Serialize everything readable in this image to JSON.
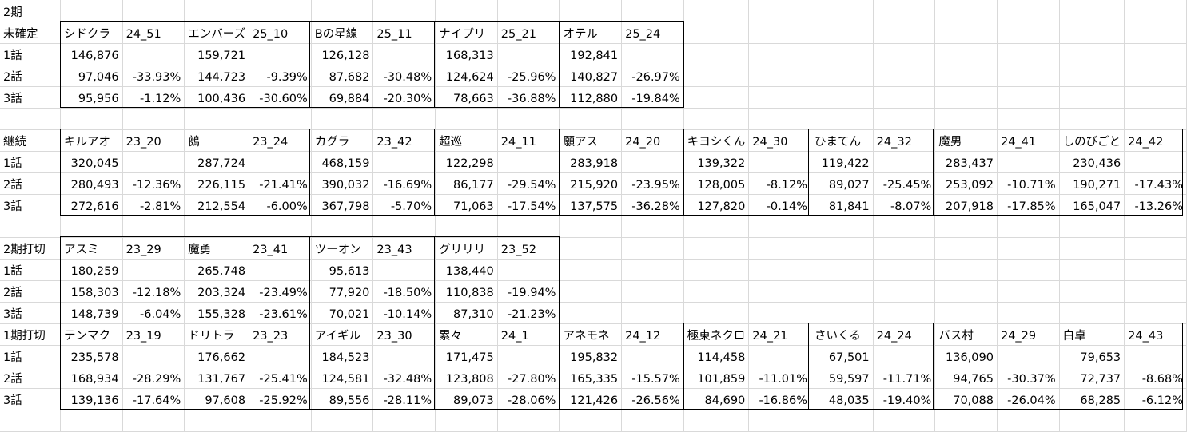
{
  "title": "2期",
  "sections": [
    {
      "label": "未確定",
      "shows": [
        {
          "name": "シドクラ",
          "code": "24_51",
          "ep1": "146,876",
          "ep2": "97,046",
          "ch2": "-33.93%",
          "ep3": "95,956",
          "ch3": "-1.12%"
        },
        {
          "name": "エンバーズ",
          "code": "25_10",
          "ep1": "159,721",
          "ep2": "144,723",
          "ch2": "-9.39%",
          "ep3": "100,436",
          "ch3": "-30.60%"
        },
        {
          "name": "Bの星線",
          "code": "25_11",
          "ep1": "126,128",
          "ep2": "87,682",
          "ch2": "-30.48%",
          "ep3": "69,884",
          "ch3": "-20.30%"
        },
        {
          "name": "ナイプリ",
          "code": "25_21",
          "ep1": "168,313",
          "ep2": "124,624",
          "ch2": "-25.96%",
          "ep3": "78,663",
          "ch3": "-36.88%"
        },
        {
          "name": "オテル",
          "code": "25_24",
          "ep1": "192,841",
          "ep2": "140,827",
          "ch2": "-26.97%",
          "ep3": "112,880",
          "ch3": "-19.84%"
        }
      ]
    },
    {
      "label": "継続",
      "shows": [
        {
          "name": "キルアオ",
          "code": "23_20",
          "ep1": "320,045",
          "ep2": "280,493",
          "ch2": "-12.36%",
          "ep3": "272,616",
          "ch3": "-2.81%"
        },
        {
          "name": "鵺",
          "code": "23_24",
          "ep1": "287,724",
          "ep2": "226,115",
          "ch2": "-21.41%",
          "ep3": "212,554",
          "ch3": "-6.00%"
        },
        {
          "name": "カグラ",
          "code": "23_42",
          "ep1": "468,159",
          "ep2": "390,032",
          "ch2": "-16.69%",
          "ep3": "367,798",
          "ch3": "-5.70%"
        },
        {
          "name": "超巡",
          "code": "24_11",
          "ep1": "122,298",
          "ep2": "86,177",
          "ch2": "-29.54%",
          "ep3": "71,063",
          "ch3": "-17.54%"
        },
        {
          "name": "願アス",
          "code": "24_20",
          "ep1": "283,918",
          "ep2": "215,920",
          "ch2": "-23.95%",
          "ep3": "137,575",
          "ch3": "-36.28%"
        },
        {
          "name": "キヨシくん",
          "code": "24_30",
          "ep1": "139,322",
          "ep2": "128,005",
          "ch2": "-8.12%",
          "ep3": "127,820",
          "ch3": "-0.14%"
        },
        {
          "name": "ひまてん",
          "code": "24_32",
          "ep1": "119,422",
          "ep2": "89,027",
          "ch2": "-25.45%",
          "ep3": "81,841",
          "ch3": "-8.07%"
        },
        {
          "name": "魔男",
          "code": "24_41",
          "ep1": "283,437",
          "ep2": "253,092",
          "ch2": "-10.71%",
          "ep3": "207,918",
          "ch3": "-17.85%"
        },
        {
          "name": "しのびごと",
          "code": "24_42",
          "ep1": "230,436",
          "ep2": "190,271",
          "ch2": "-17.43%",
          "ep3": "165,047",
          "ch3": "-13.26%"
        }
      ]
    },
    {
      "label": "2期打切",
      "shows": [
        {
          "name": "アスミ",
          "code": "23_29",
          "ep1": "180,259",
          "ep2": "158,303",
          "ch2": "-12.18%",
          "ep3": "148,739",
          "ch3": "-6.04%"
        },
        {
          "name": "魔勇",
          "code": "23_41",
          "ep1": "265,748",
          "ep2": "203,324",
          "ch2": "-23.49%",
          "ep3": "155,328",
          "ch3": "-23.61%"
        },
        {
          "name": "ツーオン",
          "code": "23_43",
          "ep1": "95,613",
          "ep2": "77,920",
          "ch2": "-18.50%",
          "ep3": "70,021",
          "ch3": "-10.14%"
        },
        {
          "name": "グリリリ",
          "code": "23_52",
          "ep1": "138,440",
          "ep2": "110,838",
          "ch2": "-19.94%",
          "ep3": "87,310",
          "ch3": "-21.23%"
        }
      ]
    },
    {
      "label": "1期打切",
      "shows": [
        {
          "name": "テンマク",
          "code": "23_19",
          "ep1": "235,578",
          "ep2": "168,934",
          "ch2": "-28.29%",
          "ep3": "139,136",
          "ch3": "-17.64%"
        },
        {
          "name": "ドリトラ",
          "code": "23_23",
          "ep1": "176,662",
          "ep2": "131,767",
          "ch2": "-25.41%",
          "ep3": "97,608",
          "ch3": "-25.92%"
        },
        {
          "name": "アイギル",
          "code": "23_30",
          "ep1": "184,523",
          "ep2": "124,581",
          "ch2": "-32.48%",
          "ep3": "89,556",
          "ch3": "-28.11%"
        },
        {
          "name": "累々",
          "code": "24_1",
          "ep1": "171,475",
          "ep2": "123,808",
          "ch2": "-27.80%",
          "ep3": "89,073",
          "ch3": "-28.06%"
        },
        {
          "name": "アネモネ",
          "code": "24_12",
          "ep1": "195,832",
          "ep2": "165,335",
          "ch2": "-15.57%",
          "ep3": "121,426",
          "ch3": "-26.56%"
        },
        {
          "name": "極東ネクロ",
          "code": "24_21",
          "ep1": "114,458",
          "ep2": "101,859",
          "ch2": "-11.01%",
          "ep3": "84,690",
          "ch3": "-16.86%"
        },
        {
          "name": "さいくる",
          "code": "24_24",
          "ep1": "67,501",
          "ep2": "59,597",
          "ch2": "-11.71%",
          "ep3": "48,035",
          "ch3": "-19.40%"
        },
        {
          "name": "バス村",
          "code": "24_29",
          "ep1": "136,090",
          "ep2": "94,765",
          "ch2": "-30.37%",
          "ep3": "70,088",
          "ch3": "-26.04%"
        },
        {
          "name": "白卓",
          "code": "24_43",
          "ep1": "79,653",
          "ep2": "72,737",
          "ch2": "-8.68%",
          "ep3": "68,285",
          "ch3": "-6.12%"
        }
      ]
    }
  ],
  "row_labels": [
    "1話",
    "2話",
    "3話"
  ]
}
